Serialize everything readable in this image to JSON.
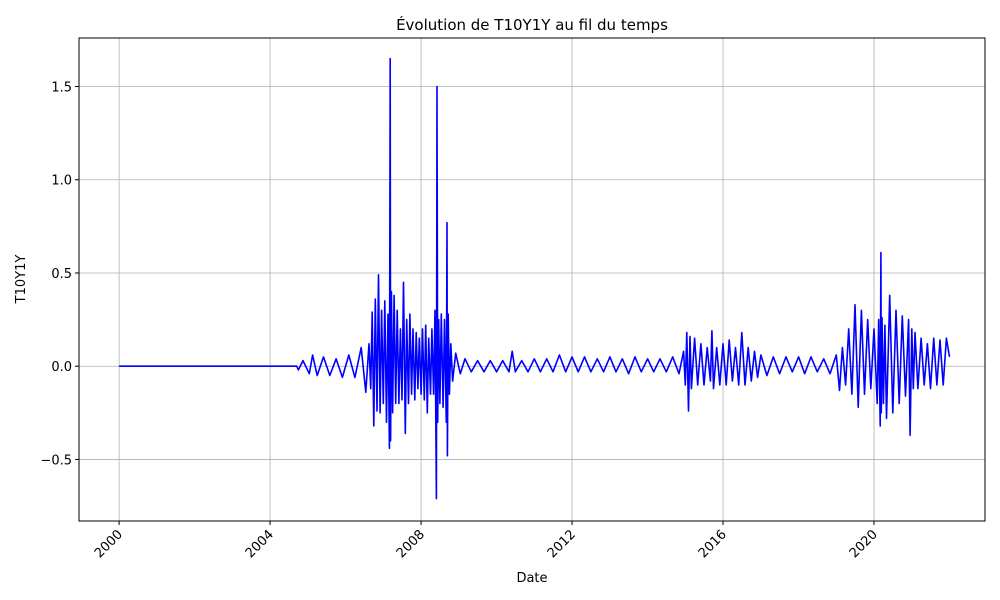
{
  "chart_data": {
    "type": "line",
    "title": "Évolution de T10Y1Y au fil du temps",
    "xlabel": "Date",
    "ylabel": "T10Y1Y",
    "grid": true,
    "legend": "none",
    "x_is_date": true,
    "xlim": [
      "1998-12-09",
      "2022-12-10"
    ],
    "ylim": [
      -0.83,
      1.76
    ],
    "x_ticks": [
      "2000-01-01",
      "2004-01-01",
      "2008-01-01",
      "2012-01-01",
      "2016-01-01",
      "2020-01-01"
    ],
    "x_tick_labels": [
      "2000",
      "2004",
      "2008",
      "2012",
      "2016",
      "2020"
    ],
    "y_ticks": [
      -0.5,
      0.0,
      0.5,
      1.0,
      1.5
    ],
    "y_tick_labels": [
      "−0.5",
      "0.0",
      "0.5",
      "1.0",
      "1.5"
    ],
    "series": [
      {
        "color": "#0000ff",
        "x": [
          "2000-01-01",
          "2004-09-15",
          "2004-10-01",
          "2004-11-15",
          "2005-01-15",
          "2005-02-15",
          "2005-04-01",
          "2005-06-01",
          "2005-08-01",
          "2005-10-01",
          "2005-12-01",
          "2006-02-01",
          "2006-04-01",
          "2006-06-01",
          "2006-07-15",
          "2006-08-15",
          "2006-09-01",
          "2006-09-15",
          "2006-10-01",
          "2006-10-15",
          "2006-11-01",
          "2006-11-15",
          "2006-12-01",
          "2006-12-15",
          "2007-01-01",
          "2007-01-15",
          "2007-02-01",
          "2007-02-15",
          "2007-03-01",
          "2007-03-08",
          "2007-03-12",
          "2007-03-20",
          "2007-04-01",
          "2007-04-15",
          "2007-05-01",
          "2007-05-15",
          "2007-06-01",
          "2007-06-15",
          "2007-07-01",
          "2007-07-15",
          "2007-08-01",
          "2007-08-15",
          "2007-09-01",
          "2007-09-15",
          "2007-10-01",
          "2007-10-15",
          "2007-11-01",
          "2007-11-15",
          "2007-12-01",
          "2007-12-15",
          "2008-01-01",
          "2008-01-15",
          "2008-02-01",
          "2008-02-15",
          "2008-03-01",
          "2008-03-15",
          "2008-04-01",
          "2008-04-15",
          "2008-05-01",
          "2008-05-15",
          "2008-05-28",
          "2008-06-03",
          "2008-06-10",
          "2008-06-20",
          "2008-07-01",
          "2008-07-15",
          "2008-08-01",
          "2008-08-15",
          "2008-09-01",
          "2008-09-08",
          "2008-09-12",
          "2008-09-20",
          "2008-10-01",
          "2008-10-15",
          "2008-11-01",
          "2008-12-01",
          "2009-01-15",
          "2009-03-01",
          "2009-05-01",
          "2009-07-01",
          "2009-09-01",
          "2009-11-01",
          "2010-01-01",
          "2010-03-01",
          "2010-05-01",
          "2010-06-01",
          "2010-07-01",
          "2010-09-01",
          "2010-11-01",
          "2011-01-01",
          "2011-03-01",
          "2011-05-01",
          "2011-07-01",
          "2011-09-01",
          "2011-11-01",
          "2012-01-01",
          "2012-03-01",
          "2012-05-01",
          "2012-07-01",
          "2012-09-01",
          "2012-11-01",
          "2013-01-01",
          "2013-03-01",
          "2013-05-01",
          "2013-07-01",
          "2013-09-01",
          "2013-11-01",
          "2014-01-01",
          "2014-03-01",
          "2014-05-01",
          "2014-07-01",
          "2014-09-01",
          "2014-11-01",
          "2014-12-15",
          "2015-01-01",
          "2015-01-15",
          "2015-02-01",
          "2015-02-15",
          "2015-03-01",
          "2015-04-01",
          "2015-05-01",
          "2015-06-01",
          "2015-07-01",
          "2015-08-01",
          "2015-09-01",
          "2015-09-15",
          "2015-10-01",
          "2015-11-01",
          "2015-12-01",
          "2016-01-01",
          "2016-02-01",
          "2016-03-01",
          "2016-04-01",
          "2016-05-01",
          "2016-06-01",
          "2016-07-01",
          "2016-08-01",
          "2016-09-01",
          "2016-10-01",
          "2016-11-01",
          "2016-12-01",
          "2017-01-01",
          "2017-03-01",
          "2017-05-01",
          "2017-07-01",
          "2017-09-01",
          "2017-11-01",
          "2018-01-01",
          "2018-03-01",
          "2018-05-01",
          "2018-07-01",
          "2018-09-01",
          "2018-11-01",
          "2019-01-01",
          "2019-02-01",
          "2019-03-01",
          "2019-04-01",
          "2019-05-01",
          "2019-06-01",
          "2019-07-01",
          "2019-08-01",
          "2019-09-01",
          "2019-10-01",
          "2019-11-01",
          "2019-12-01",
          "2020-01-01",
          "2020-02-01",
          "2020-02-15",
          "2020-03-01",
          "2020-03-08",
          "2020-03-12",
          "2020-03-18",
          "2020-04-01",
          "2020-04-15",
          "2020-05-01",
          "2020-06-01",
          "2020-07-01",
          "2020-08-01",
          "2020-09-01",
          "2020-10-01",
          "2020-11-01",
          "2020-12-01",
          "2020-12-15",
          "2021-01-01",
          "2021-01-15",
          "2021-02-01",
          "2021-03-01",
          "2021-04-01",
          "2021-05-01",
          "2021-06-01",
          "2021-07-01",
          "2021-08-01",
          "2021-09-01",
          "2021-10-01",
          "2021-11-01",
          "2021-12-01",
          "2021-12-31"
        ],
        "values": [
          0.0,
          0.0,
          -0.02,
          0.03,
          -0.04,
          0.06,
          -0.05,
          0.05,
          -0.05,
          0.04,
          -0.06,
          0.06,
          -0.06,
          0.1,
          -0.14,
          0.12,
          -0.12,
          0.29,
          -0.32,
          0.36,
          -0.24,
          0.49,
          -0.25,
          0.3,
          -0.2,
          0.35,
          -0.3,
          0.28,
          -0.44,
          1.65,
          -0.4,
          0.4,
          -0.25,
          0.38,
          -0.2,
          0.3,
          -0.2,
          0.2,
          -0.18,
          0.45,
          -0.36,
          0.25,
          -0.2,
          0.28,
          -0.15,
          0.2,
          -0.18,
          0.18,
          -0.12,
          0.15,
          -0.15,
          0.2,
          -0.18,
          0.22,
          -0.25,
          0.15,
          -0.15,
          0.2,
          -0.15,
          0.3,
          -0.71,
          1.5,
          -0.3,
          0.25,
          -0.2,
          0.28,
          -0.22,
          0.25,
          -0.3,
          0.77,
          -0.48,
          0.28,
          -0.15,
          0.12,
          -0.08,
          0.07,
          -0.04,
          0.04,
          -0.03,
          0.03,
          -0.03,
          0.03,
          -0.03,
          0.03,
          -0.03,
          0.08,
          -0.03,
          0.03,
          -0.03,
          0.04,
          -0.03,
          0.04,
          -0.03,
          0.06,
          -0.03,
          0.05,
          -0.03,
          0.05,
          -0.03,
          0.04,
          -0.03,
          0.05,
          -0.03,
          0.04,
          -0.04,
          0.05,
          -0.03,
          0.04,
          -0.03,
          0.04,
          -0.03,
          0.05,
          -0.04,
          0.08,
          -0.1,
          0.18,
          -0.24,
          0.16,
          -0.12,
          0.15,
          -0.1,
          0.12,
          -0.1,
          0.1,
          -0.08,
          0.19,
          -0.12,
          0.1,
          -0.1,
          0.12,
          -0.1,
          0.14,
          -0.08,
          0.1,
          -0.1,
          0.18,
          -0.1,
          0.1,
          -0.08,
          0.08,
          -0.06,
          0.06,
          -0.05,
          0.05,
          -0.04,
          0.05,
          -0.03,
          0.05,
          -0.04,
          0.05,
          -0.03,
          0.04,
          -0.04,
          0.06,
          -0.13,
          0.1,
          -0.1,
          0.2,
          -0.15,
          0.33,
          -0.22,
          0.3,
          -0.15,
          0.25,
          -0.12,
          0.2,
          -0.2,
          0.25,
          -0.32,
          0.61,
          -0.25,
          0.26,
          -0.2,
          0.22,
          -0.28,
          0.38,
          -0.25,
          0.3,
          -0.2,
          0.27,
          -0.16,
          0.25,
          -0.37,
          0.2,
          -0.12,
          0.18,
          -0.12,
          0.15,
          -0.1,
          0.12,
          -0.12,
          0.15,
          -0.1,
          0.14,
          -0.1,
          0.15,
          0.05
        ]
      }
    ]
  }
}
